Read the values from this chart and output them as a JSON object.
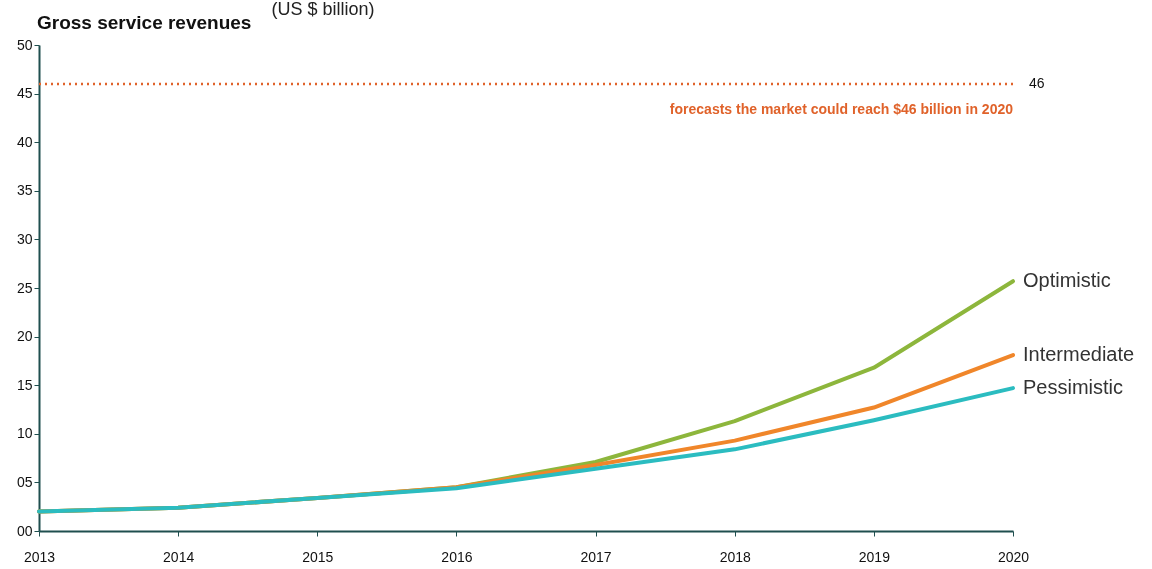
{
  "chart_data": {
    "type": "line",
    "title": "Gross service revenues",
    "ylabel": "(US $ billion)",
    "categories": [
      "2013",
      "2014",
      "2015",
      "2016",
      "2017",
      "2018",
      "2019",
      "2020"
    ],
    "series": [
      {
        "name": "Optimistic",
        "color": "#8db63c",
        "values": [
          2.0,
          2.4,
          3.4,
          4.5,
          7.1,
          11.3,
          16.8,
          25.7
        ]
      },
      {
        "name": "Intermediate",
        "color": "#f0862a",
        "values": [
          2.0,
          2.4,
          3.4,
          4.5,
          6.8,
          9.3,
          12.7,
          18.1
        ]
      },
      {
        "name": "Pessimistic",
        "color": "#2bbcc0",
        "values": [
          2.0,
          2.4,
          3.4,
          4.4,
          6.4,
          8.4,
          11.4,
          14.7
        ]
      }
    ],
    "ylim": [
      0,
      50
    ],
    "yticks": [
      {
        "value": 0,
        "label": "00"
      },
      {
        "value": 5,
        "label": "05"
      },
      10,
      15,
      20,
      25,
      30,
      35,
      40,
      45,
      50
    ],
    "ref_lines": [
      {
        "axis": "y",
        "value": 46,
        "label": "46",
        "color": "#e0622a",
        "line_style": "dotted"
      }
    ],
    "annotations": [
      "forecasts the market could reach $46 billion in 2020"
    ],
    "legend": false
  }
}
